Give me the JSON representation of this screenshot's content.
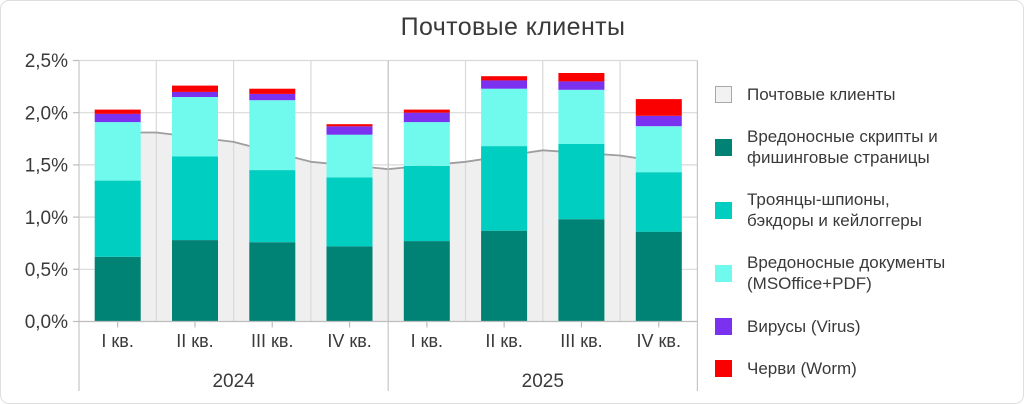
{
  "title": "Почтовые клиенты",
  "colors": {
    "mail_clients_area": "#efefef",
    "mail_clients_line": "#9e9e9e",
    "scripts_phishing": "#008274",
    "trojans_backdoors": "#00cec0",
    "malicious_documents": "#70faee",
    "viruses": "#7a31f0",
    "worms": "#fb0000",
    "gridline": "#d9d9d9",
    "axis": "#bdbdbd",
    "frame": "#c6c6c6",
    "text": "#3a3a3a"
  },
  "chart_data": {
    "type": "bar",
    "stacked": true,
    "title": "Почтовые клиенты",
    "unit": "%",
    "categories": [
      "I кв.",
      "II кв.",
      "III кв.",
      "IV кв.",
      "I кв.",
      "II кв.",
      "III кв.",
      "IV кв."
    ],
    "groups": [
      {
        "label": "2024",
        "span": 4
      },
      {
        "label": "2025",
        "span": 4
      }
    ],
    "y_ticks": [
      {
        "label": "0,0%",
        "value": 0
      },
      {
        "label": "0,5%",
        "value": 0.5
      },
      {
        "label": "1,0%",
        "value": 1.0
      },
      {
        "label": "1,5%",
        "value": 1.5
      },
      {
        "label": "2,0%",
        "value": 2.0
      },
      {
        "label": "2,5%",
        "value": 2.5
      }
    ],
    "ylim": [
      0,
      2.5
    ],
    "grid": true,
    "legend_position": "right",
    "series": [
      {
        "name": "Почтовые клиенты",
        "render": "area-line",
        "color": "#efefef",
        "line_color": "#9e9e9e",
        "values": [
          1.81,
          1.72,
          1.53,
          1.46,
          1.53,
          1.64,
          1.59,
          1.5
        ]
      },
      {
        "name": "Вредоносные скрипты и фишинговые страницы",
        "render": "bar",
        "color": "#008274",
        "values": [
          0.62,
          0.78,
          0.76,
          0.72,
          0.77,
          0.87,
          0.98,
          0.86
        ]
      },
      {
        "name": "Троянцы-шпионы, бэкдоры и кейлоггеры",
        "render": "bar",
        "color": "#00cec0",
        "values": [
          0.73,
          0.8,
          0.69,
          0.66,
          0.72,
          0.81,
          0.72,
          0.57
        ]
      },
      {
        "name": "Вредоносные документы (MSOffice+PDF)",
        "render": "bar",
        "color": "#70faee",
        "values": [
          0.56,
          0.57,
          0.67,
          0.41,
          0.42,
          0.55,
          0.52,
          0.44
        ]
      },
      {
        "name": "Вирусы (Virus)",
        "render": "bar",
        "color": "#7a31f0",
        "values": [
          0.08,
          0.05,
          0.06,
          0.08,
          0.09,
          0.08,
          0.08,
          0.1
        ]
      },
      {
        "name": "Черви (Worm)",
        "render": "bar",
        "color": "#fb0000",
        "values": [
          0.04,
          0.06,
          0.05,
          0.02,
          0.03,
          0.04,
          0.08,
          0.16
        ]
      }
    ]
  },
  "legend": {
    "items": [
      {
        "label": "Почтовые клиенты",
        "color": "#f2f2f2"
      },
      {
        "label": "Вредоносные скрипты и\nфишинговые страницы",
        "color": "#008274"
      },
      {
        "label": "Троянцы-шпионы,\nбэкдоры и кейлоггеры",
        "color": "#00cec0"
      },
      {
        "label": "Вредоносные документы\n(MSOffice+PDF)",
        "color": "#70faee"
      },
      {
        "label": "Вирусы (Virus)",
        "color": "#7a31f0"
      },
      {
        "label": "Черви (Worm)",
        "color": "#fb0000"
      }
    ]
  }
}
